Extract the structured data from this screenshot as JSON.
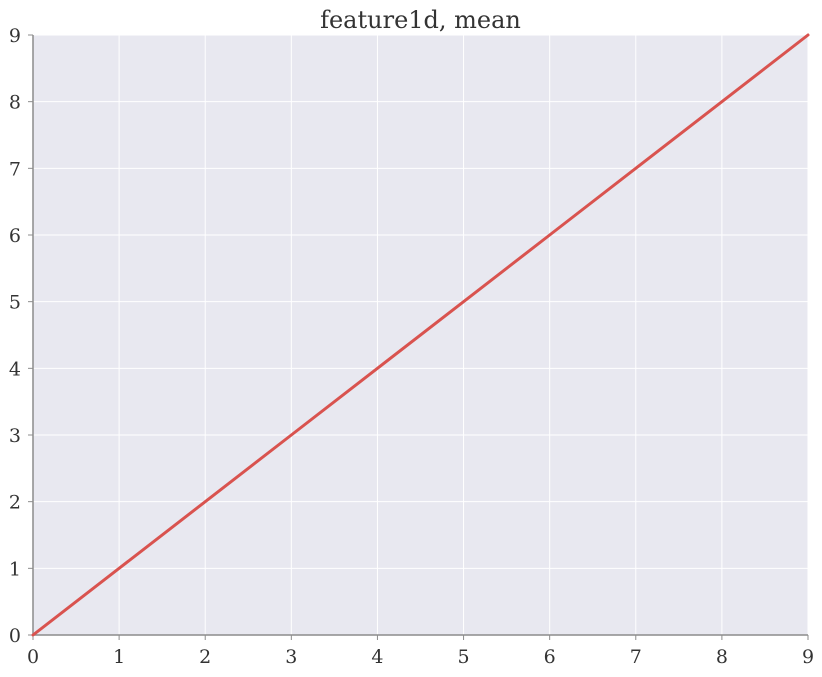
{
  "chart_data": {
    "type": "line",
    "title": "feature1d, mean",
    "xlabel": "",
    "ylabel": "",
    "xlim": [
      0,
      9
    ],
    "ylim": [
      0,
      9
    ],
    "xticks": [
      "0",
      "1",
      "2",
      "3",
      "4",
      "5",
      "6",
      "7",
      "8",
      "9"
    ],
    "yticks": [
      "0",
      "1",
      "2",
      "3",
      "4",
      "5",
      "6",
      "7",
      "8",
      "9"
    ],
    "grid": true,
    "series": [
      {
        "x": [
          0,
          1,
          2,
          3,
          4,
          5,
          6,
          7,
          8,
          9
        ],
        "y": [
          0,
          1,
          2,
          3,
          4,
          5,
          6,
          7,
          8,
          9
        ],
        "color": "#d9534f"
      }
    ],
    "colors": {
      "plot_background": "#e8e8f0",
      "grid": "#ffffff",
      "axis": "#8c8c8c",
      "text": "#333333"
    }
  }
}
